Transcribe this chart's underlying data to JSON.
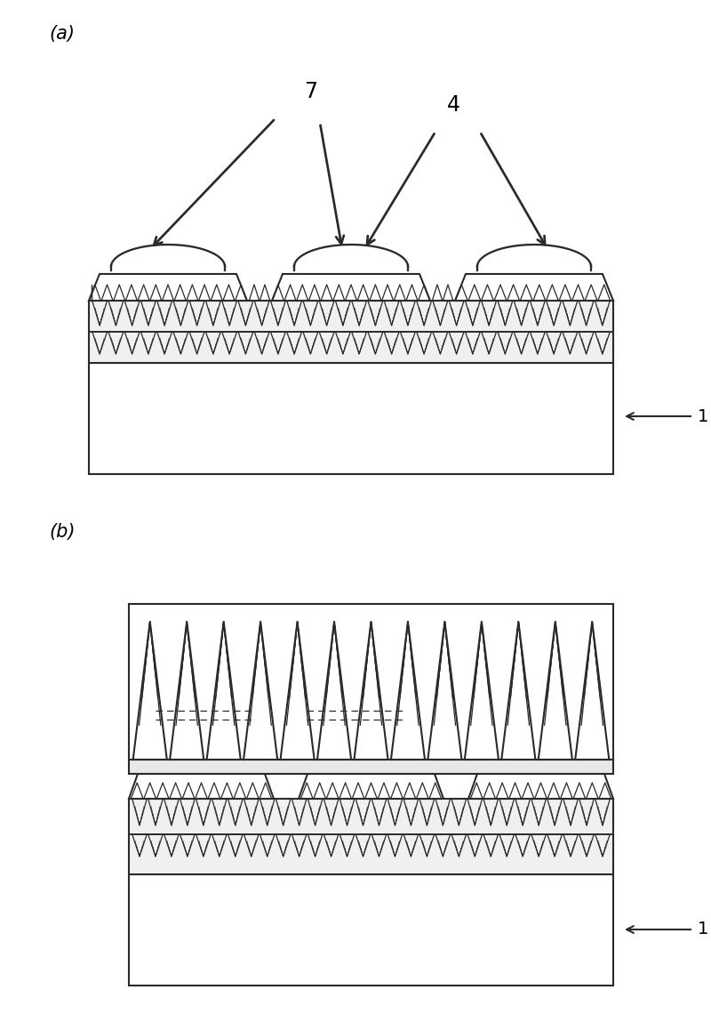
{
  "bg_color": "#ffffff",
  "line_color": "#2a2a2a",
  "label_a": "(a)",
  "label_b": "(b)",
  "fig_width": 8.0,
  "fig_height": 11.58,
  "lw_main": 1.5,
  "lw_thin": 0.9
}
